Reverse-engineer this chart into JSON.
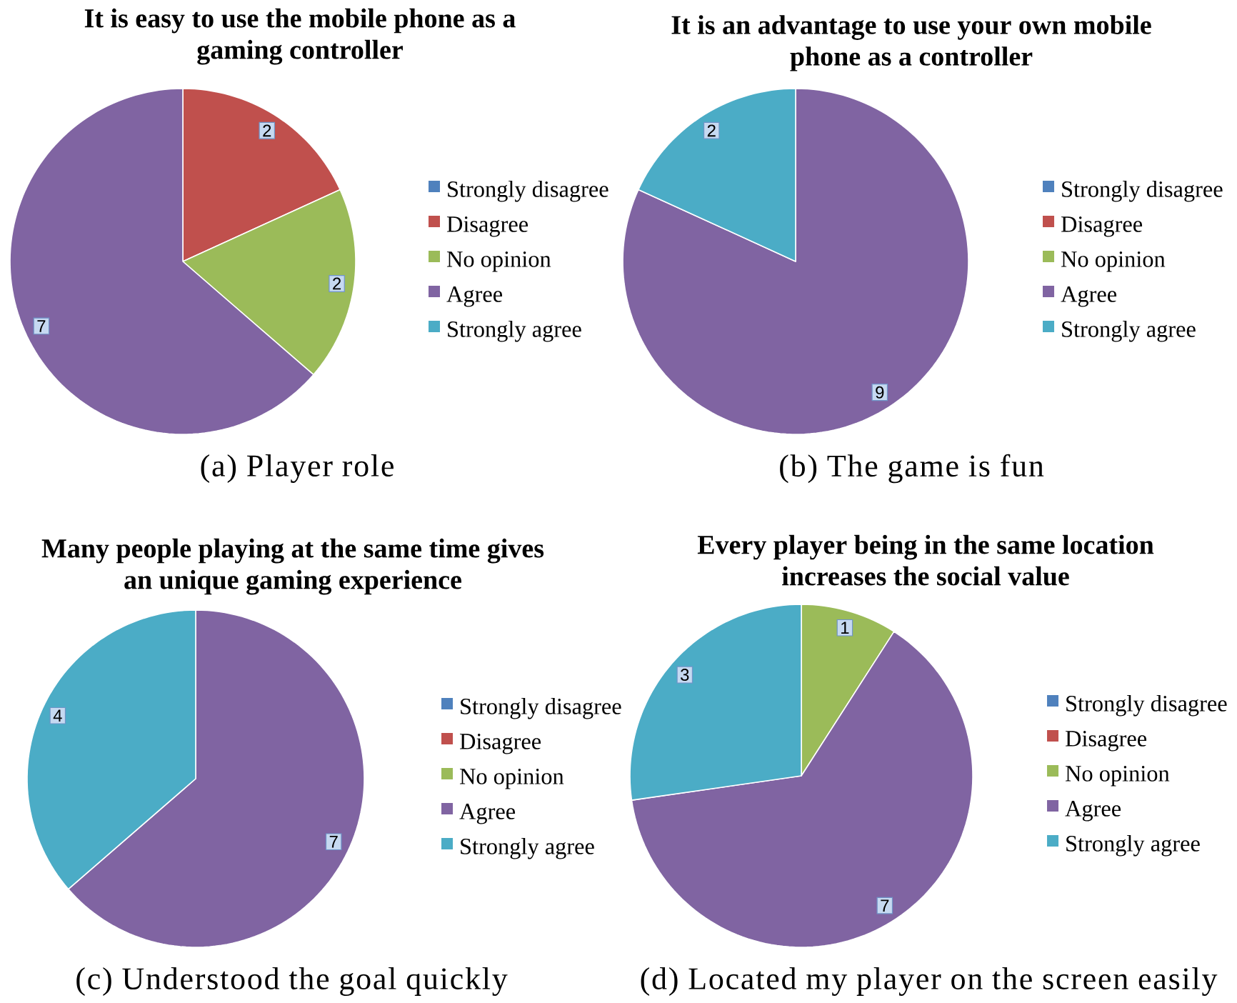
{
  "chart_data": [
    {
      "type": "pie",
      "title": "It is easy to use the mobile phone as a gaming controller",
      "categories": [
        "Strongly disagree",
        "Disagree",
        "No opinion",
        "Agree",
        "Strongly agree"
      ],
      "values": [
        0,
        2,
        2,
        7,
        0
      ],
      "colors": [
        "#4f81bd",
        "#c0504d",
        "#9bbb59",
        "#8064a2",
        "#4bacc6"
      ],
      "legend": "right",
      "data_labels": true,
      "annotations": [
        "(a) Player role"
      ]
    },
    {
      "type": "pie",
      "title": "It is an advantage to use your own mobile phone as a controller",
      "categories": [
        "Strongly disagree",
        "Disagree",
        "No opinion",
        "Agree",
        "Strongly agree"
      ],
      "values": [
        0,
        0,
        0,
        9,
        2
      ],
      "colors": [
        "#4f81bd",
        "#c0504d",
        "#9bbb59",
        "#8064a2",
        "#4bacc6"
      ],
      "legend": "right",
      "data_labels": true,
      "annotations": [
        "(b) The game is fun"
      ]
    },
    {
      "type": "pie",
      "title": "Many people playing at the same time gives an unique gaming experience",
      "categories": [
        "Strongly disagree",
        "Disagree",
        "No opinion",
        "Agree",
        "Strongly agree"
      ],
      "values": [
        0,
        0,
        0,
        7,
        4
      ],
      "colors": [
        "#4f81bd",
        "#c0504d",
        "#9bbb59",
        "#8064a2",
        "#4bacc6"
      ],
      "legend": "right",
      "data_labels": true,
      "annotations": [
        "(c) Understood the goal quickly"
      ]
    },
    {
      "type": "pie",
      "title": "Every player being in the same location increases the social value",
      "categories": [
        "Strongly disagree",
        "Disagree",
        "No opinion",
        "Agree",
        "Strongly agree"
      ],
      "values": [
        0,
        0,
        1,
        7,
        3
      ],
      "colors": [
        "#4f81bd",
        "#c0504d",
        "#9bbb59",
        "#8064a2",
        "#4bacc6"
      ],
      "legend": "right",
      "data_labels": true,
      "annotations": [
        "(d) Located my player on the screen easily"
      ]
    }
  ]
}
